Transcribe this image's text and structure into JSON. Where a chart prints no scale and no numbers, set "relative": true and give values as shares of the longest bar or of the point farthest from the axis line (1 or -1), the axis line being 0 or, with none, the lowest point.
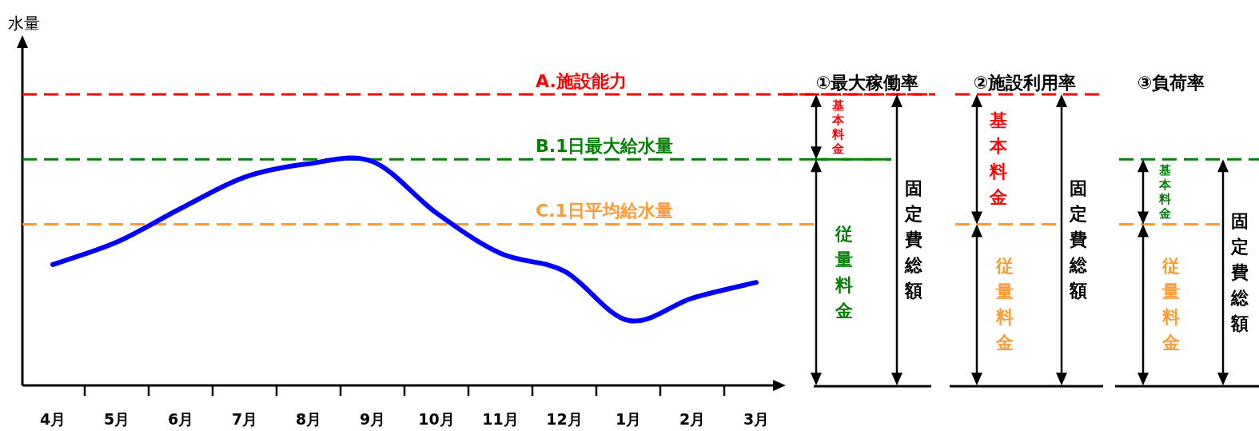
{
  "chart_data": {
    "type": "line",
    "relative": true,
    "color": "#0000ff",
    "categories": [
      "4月",
      "5月",
      "6月",
      "7月",
      "8月",
      "9月",
      "10月",
      "11月",
      "12月",
      "1月",
      "2月",
      "3月"
    ],
    "values": [
      0.54,
      0.64,
      0.79,
      0.93,
      0.99,
      1.0,
      0.77,
      0.59,
      0.51,
      0.29,
      0.39,
      0.46
    ],
    "ref_lines": [
      {
        "axis": "y",
        "value": 1.3,
        "label": "A.施設能力",
        "color": "#ff0000",
        "line_style": "dashed"
      },
      {
        "axis": "y",
        "value": 1.01,
        "label": "B.1日最大給水量",
        "color": "#008000",
        "line_style": "dashed"
      },
      {
        "axis": "y",
        "value": 0.72,
        "label": "C.1日平均給水量",
        "color": "#ff9933",
        "line_style": "dashed"
      }
    ],
    "annotations": [
      "①最大稼働率",
      "②施設利用率",
      "③負荷率",
      "基本料金",
      "従量料金",
      "固定費総額",
      "基本料金",
      "従量料金",
      "固定費総額",
      "基本料金",
      "従量料金",
      "固定費総額",
      "水量"
    ]
  }
}
